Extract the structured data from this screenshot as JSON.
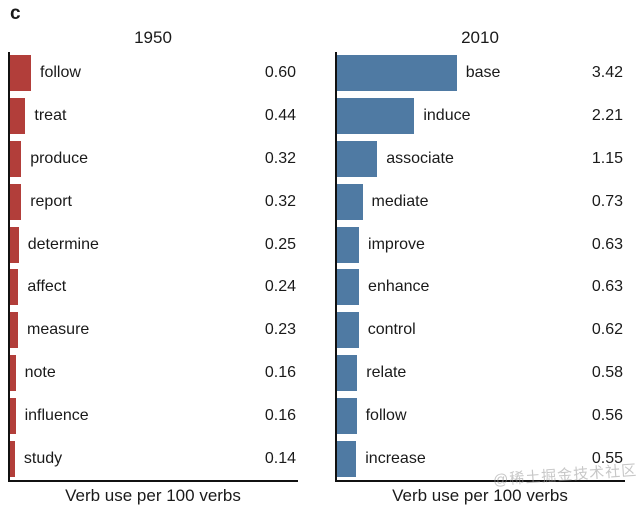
{
  "panel_label": "c",
  "watermark_text": "@稀土掘金技术社区",
  "colors": {
    "bar_1950": "#b23e3a",
    "bar_2010": "#4f7aa3",
    "axis": "#111111",
    "text": "#1a1a1a",
    "watermark": "#9b9b9b"
  },
  "chart_data": [
    {
      "type": "bar",
      "orientation": "horizontal",
      "title": "1950",
      "xlabel": "Verb use per 100 verbs",
      "xlim": [
        0,
        3.6
      ],
      "grid": false,
      "legend": "none",
      "bar_color": "#b23e3a",
      "categories": [
        "follow",
        "treat",
        "produce",
        "report",
        "determine",
        "affect",
        "measure",
        "note",
        "influence",
        "study"
      ],
      "values": [
        0.6,
        0.44,
        0.32,
        0.32,
        0.25,
        0.24,
        0.23,
        0.16,
        0.16,
        0.14
      ],
      "value_labels": [
        "0.60",
        "0.44",
        "0.32",
        "0.32",
        "0.25",
        "0.24",
        "0.23",
        "0.16",
        "0.16",
        "0.14"
      ]
    },
    {
      "type": "bar",
      "orientation": "horizontal",
      "title": "2010",
      "xlabel": "Verb use per 100 verbs",
      "xlim": [
        0,
        3.6
      ],
      "grid": false,
      "legend": "none",
      "bar_color": "#4f7aa3",
      "categories": [
        "base",
        "induce",
        "associate",
        "mediate",
        "improve",
        "enhance",
        "control",
        "relate",
        "follow",
        "increase"
      ],
      "values": [
        3.42,
        2.21,
        1.15,
        0.73,
        0.63,
        0.63,
        0.62,
        0.58,
        0.56,
        0.55
      ],
      "value_labels": [
        "3.42",
        "2.21",
        "1.15",
        "0.73",
        "0.63",
        "0.63",
        "0.62",
        "0.58",
        "0.56",
        "0.55"
      ]
    }
  ]
}
